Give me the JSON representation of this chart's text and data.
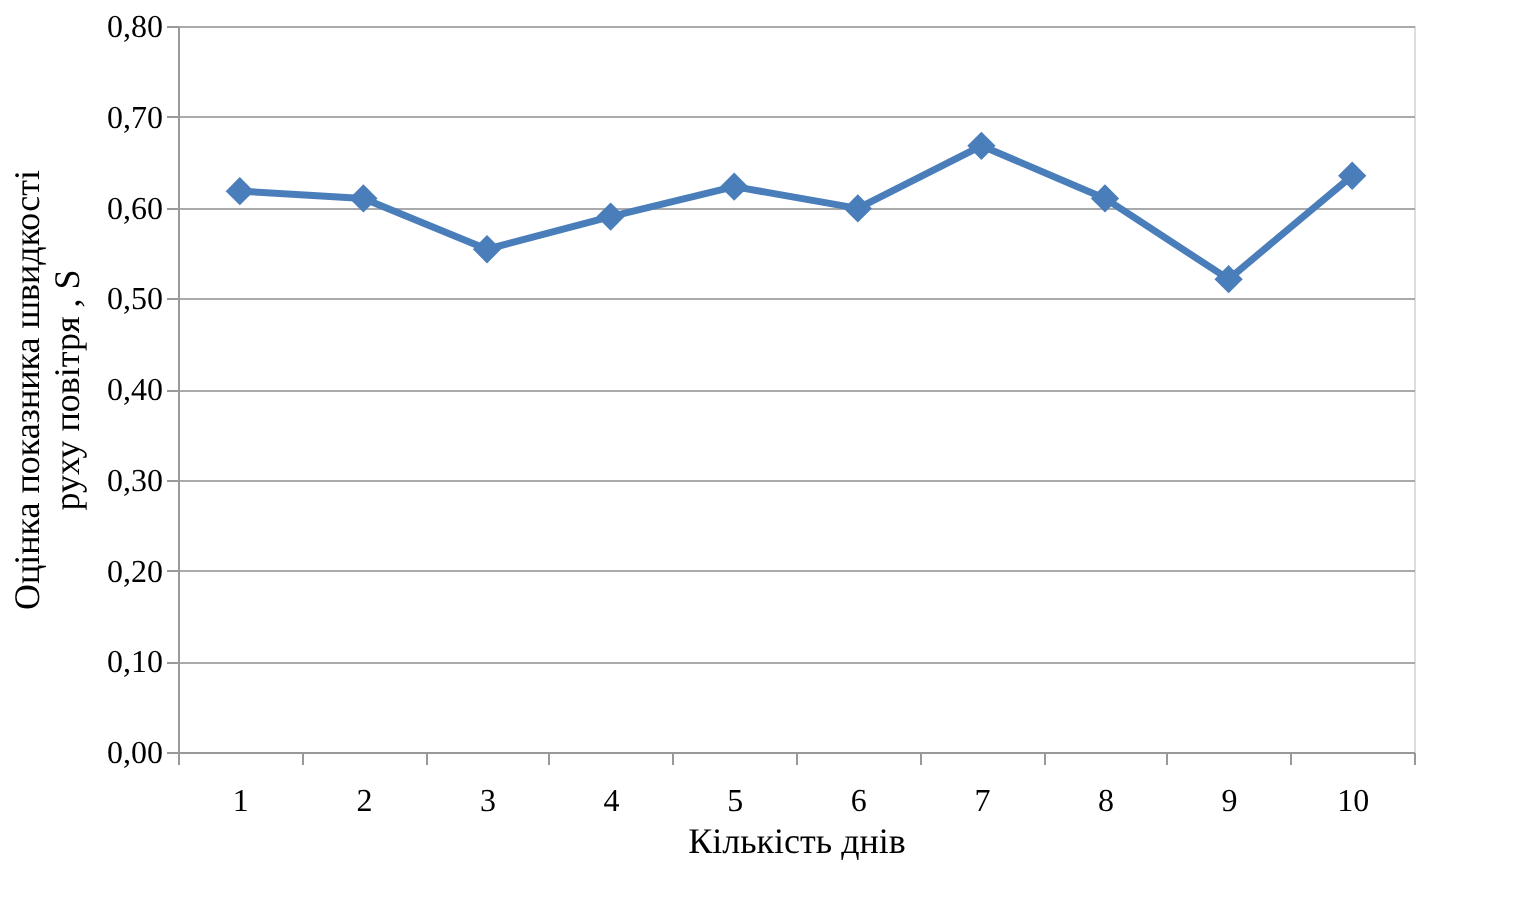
{
  "chart_data": {
    "type": "line",
    "xlabel": "Кількість днів",
    "ylabel": "Оцінка показника  швидкості\nруху повітря , S",
    "categories": [
      "1",
      "2",
      "3",
      "4",
      "5",
      "6",
      "7",
      "8",
      "9",
      "10"
    ],
    "series": [
      {
        "color": "#4a7ebb",
        "values": [
          0.618,
          0.61,
          0.554,
          0.59,
          0.623,
          0.599,
          0.668,
          0.61,
          0.521,
          0.635
        ]
      }
    ],
    "ylim": [
      0,
      0.8
    ],
    "yticks": [
      {
        "value": 0,
        "label": "0,00"
      },
      {
        "value": 0.1,
        "label": "0,10"
      },
      {
        "value": 0.2,
        "label": "0,20"
      },
      {
        "value": 0.3,
        "label": "0,30"
      },
      {
        "value": 0.4,
        "label": "0,40"
      },
      {
        "value": 0.5,
        "label": "0,50"
      },
      {
        "value": 0.6,
        "label": "0,60"
      },
      {
        "value": 0.7,
        "label": "0,70"
      },
      {
        "value": 0.8,
        "label": "0,80"
      }
    ],
    "grid": "y",
    "marker": "diamond",
    "line_style": "solid"
  }
}
